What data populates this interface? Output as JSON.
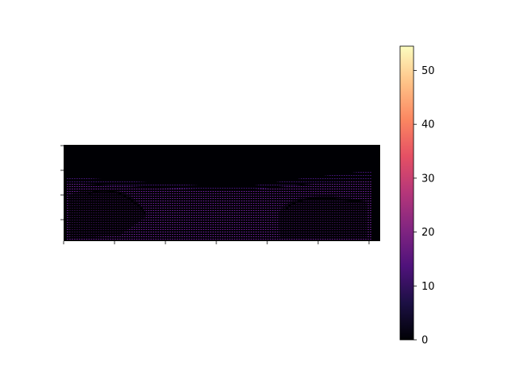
{
  "chart_data": {
    "type": "heatmap",
    "title": "",
    "xlabel": "",
    "ylabel": "",
    "colormap": "magma",
    "colorbar": {
      "range": [
        0,
        54.5
      ],
      "ticks": [
        0,
        10,
        20,
        30,
        40,
        50
      ],
      "tick_labels": [
        "0",
        "10",
        "20",
        "30",
        "40",
        "50"
      ]
    },
    "x_tick_count": 7,
    "y_tick_count": 4,
    "x_tick_labels_visible": false,
    "y_tick_labels_visible": false,
    "description_values": {
      "background_value": 0,
      "typical_point_value": 14
    }
  },
  "colors": {
    "background": "#000004",
    "foreground_points": "#5c1a80",
    "colormap_stops": [
      "#000004",
      "#1c1044",
      "#4f127b",
      "#812581",
      "#b5367a",
      "#e55064",
      "#fb8761",
      "#fec287",
      "#fcfdbf"
    ]
  }
}
